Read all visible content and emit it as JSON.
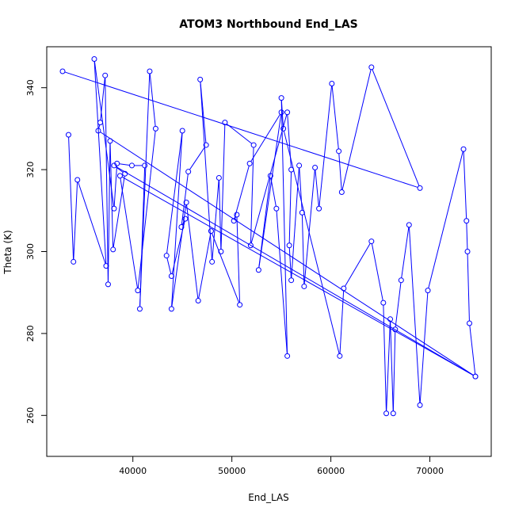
{
  "chart_data": {
    "type": "line",
    "title": "ATOM3 Northbound End_LAS",
    "xlabel": "End_LAS",
    "ylabel": "Theta (K)",
    "xlim": [
      31300,
      76200
    ],
    "ylim": [
      250,
      350
    ],
    "x_ticks": [
      40000,
      50000,
      60000,
      70000
    ],
    "x_tick_labels": [
      "40000",
      "50000",
      "60000",
      "70000"
    ],
    "y_ticks": [
      260,
      280,
      300,
      320,
      340
    ],
    "y_tick_labels": [
      "260",
      "280",
      "300",
      "320",
      "340"
    ],
    "series": [
      {
        "color": "#0000ff",
        "markers": "open-circle",
        "points": [
          [
            32900,
            344
          ],
          [
            69000,
            315.5
          ],
          [
            64100,
            345
          ],
          [
            61100,
            314.5
          ],
          [
            60800,
            324.5
          ],
          [
            60100,
            341
          ],
          [
            58800,
            310.5
          ],
          [
            58400,
            320.5
          ],
          [
            57300,
            291.5
          ],
          [
            57100,
            309.5
          ],
          [
            56800,
            321
          ],
          [
            56000,
            293
          ],
          [
            55800,
            301.5
          ],
          [
            56000,
            320
          ],
          [
            55600,
            334
          ],
          [
            51900,
            301.5
          ],
          [
            52200,
            326
          ],
          [
            49300,
            331.5
          ],
          [
            48900,
            300
          ],
          [
            48700,
            318
          ],
          [
            48000,
            297.5
          ],
          [
            46800,
            342
          ],
          [
            47400,
            326
          ],
          [
            45600,
            319.5
          ],
          [
            44900,
            306
          ],
          [
            45300,
            308
          ],
          [
            43900,
            294
          ],
          [
            43400,
            299
          ],
          [
            45000,
            329.5
          ],
          [
            43900,
            286
          ],
          [
            45400,
            312
          ],
          [
            46600,
            288
          ],
          [
            47900,
            305
          ],
          [
            50800,
            287
          ],
          [
            50500,
            309
          ],
          [
            50200,
            307.5
          ],
          [
            51800,
            321.5
          ],
          [
            55000,
            334
          ],
          [
            52700,
            295.5
          ],
          [
            53900,
            318.5
          ],
          [
            54500,
            310.5
          ],
          [
            55600,
            274.5
          ],
          [
            55000,
            337.5
          ],
          [
            55200,
            330
          ],
          [
            60900,
            274.5
          ],
          [
            61300,
            291
          ],
          [
            64100,
            302.5
          ],
          [
            65300,
            287.5
          ],
          [
            65600,
            260.5
          ],
          [
            66000,
            283.5
          ],
          [
            66300,
            260.5
          ],
          [
            66500,
            281
          ],
          [
            67100,
            293
          ],
          [
            67900,
            306.5
          ],
          [
            69000,
            262.5
          ],
          [
            69800,
            290.5
          ],
          [
            73400,
            325
          ],
          [
            73700,
            307.5
          ],
          [
            73800,
            300
          ],
          [
            74000,
            282.5
          ],
          [
            74600,
            269.5
          ],
          [
            38100,
            321
          ],
          [
            39200,
            319
          ],
          [
            38000,
            300.5
          ],
          [
            37700,
            327
          ],
          [
            37500,
            292
          ],
          [
            37200,
            343
          ],
          [
            36700,
            331.5
          ],
          [
            36500,
            329.5
          ],
          [
            74600,
            269.5
          ],
          [
            38700,
            318.5
          ],
          [
            40500,
            290.5
          ],
          [
            42300,
            330
          ],
          [
            41700,
            344
          ],
          [
            40700,
            286
          ],
          [
            41200,
            321
          ],
          [
            39900,
            321
          ],
          [
            38400,
            321.5
          ],
          [
            38100,
            310.5
          ],
          [
            36100,
            347
          ],
          [
            37300,
            296.5
          ],
          [
            34400,
            317.5
          ],
          [
            34000,
            297.5
          ],
          [
            33500,
            328.5
          ]
        ]
      }
    ]
  }
}
